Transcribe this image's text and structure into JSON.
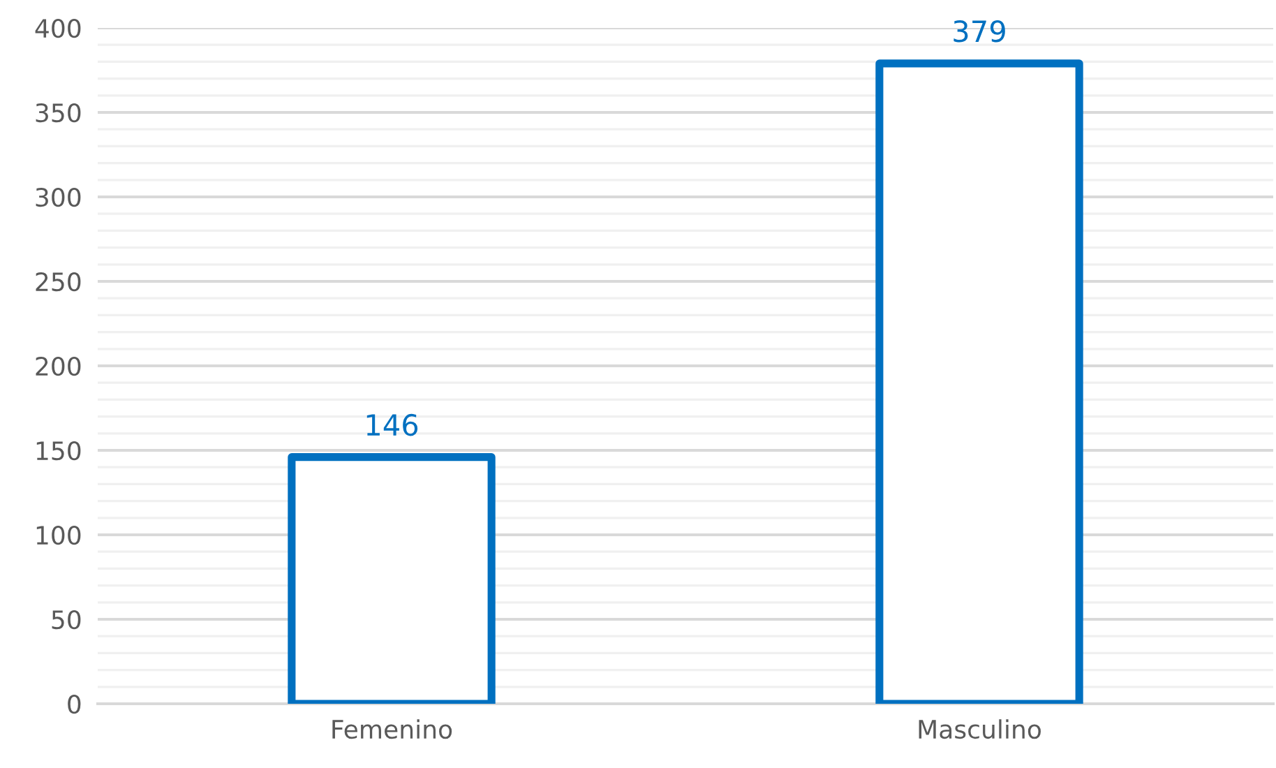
{
  "chart_data": {
    "type": "bar",
    "categories": [
      "Femenino",
      "Masculino"
    ],
    "values": [
      146,
      379
    ],
    "color": "#0070c0",
    "data_labels": true,
    "ylim": [
      0,
      400
    ],
    "yticks": [
      0,
      {
        "value": 10,
        "label": null
      },
      {
        "value": 20,
        "label": null
      },
      {
        "value": 30,
        "label": null
      },
      {
        "value": 40,
        "label": null
      },
      50,
      {
        "value": 60,
        "label": null
      },
      {
        "value": 70,
        "label": null
      },
      {
        "value": 80,
        "label": null
      },
      {
        "value": 90,
        "label": null
      },
      100,
      {
        "value": 110,
        "label": null
      },
      {
        "value": 120,
        "label": null
      },
      {
        "value": 130,
        "label": null
      },
      {
        "value": 140,
        "label": null
      },
      150,
      {
        "value": 160,
        "label": null
      },
      {
        "value": 170,
        "label": null
      },
      {
        "value": 180,
        "label": null
      },
      {
        "value": 190,
        "label": null
      },
      200,
      {
        "value": 210,
        "label": null
      },
      {
        "value": 220,
        "label": null
      },
      {
        "value": 230,
        "label": null
      },
      {
        "value": 240,
        "label": null
      },
      250,
      {
        "value": 260,
        "label": null
      },
      {
        "value": 270,
        "label": null
      },
      {
        "value": 280,
        "label": null
      },
      {
        "value": 290,
        "label": null
      },
      300,
      {
        "value": 310,
        "label": null
      },
      {
        "value": 320,
        "label": null
      },
      {
        "value": 330,
        "label": null
      },
      {
        "value": 340,
        "label": null
      },
      350,
      {
        "value": 360,
        "label": null
      },
      {
        "value": 370,
        "label": null
      },
      {
        "value": 380,
        "label": null
      },
      {
        "value": 390,
        "label": null
      },
      400
    ],
    "grid": "y",
    "legend": false
  }
}
